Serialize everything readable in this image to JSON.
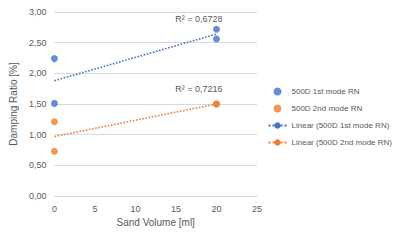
{
  "chart_data": {
    "type": "scatter",
    "x_label": "Sand Volume [ml]",
    "y_label": "Damping Ratio [%]",
    "xlim": [
      0,
      25
    ],
    "xticks": [
      0,
      5,
      10,
      15,
      20,
      25
    ],
    "ylim": [
      0,
      3
    ],
    "yticks": [
      {
        "value": 0,
        "label": "0,00"
      },
      {
        "value": 0.5,
        "label": "0,50"
      },
      {
        "value": 1,
        "label": "1,00"
      },
      {
        "value": 1.5,
        "label": "1,50"
      },
      {
        "value": 2,
        "label": "2,00"
      },
      {
        "value": 2.5,
        "label": "2,50"
      },
      {
        "value": 3,
        "label": "3,00"
      }
    ],
    "grid": true,
    "legend": "right",
    "series": [
      {
        "name": "500D 1st mode RN",
        "type": "scatter",
        "marker": "circle",
        "color": "#4472c4",
        "x": [
          0,
          0,
          20,
          20
        ],
        "values": [
          2.24,
          1.51,
          2.72,
          2.56
        ]
      },
      {
        "name": "500D 2nd mode RN",
        "type": "scatter",
        "marker": "circle",
        "color": "#ed7d31",
        "x": [
          0,
          0,
          20,
          20
        ],
        "values": [
          1.21,
          0.73,
          1.5,
          1.5
        ]
      },
      {
        "name": "Linear (500D 1st mode RN)",
        "type": "line",
        "line_style": "dotted",
        "color": "#4472c4",
        "x": [
          0,
          20
        ],
        "values": [
          1.88,
          2.64
        ],
        "annotation": "R² = 0,6728"
      },
      {
        "name": "Linear (500D 2nd mode RN)",
        "type": "line",
        "line_style": "dotted",
        "color": "#ed7d31",
        "x": [
          0,
          20
        ],
        "values": [
          0.97,
          1.5
        ],
        "annotation": "R² = 0,7216"
      }
    ]
  }
}
